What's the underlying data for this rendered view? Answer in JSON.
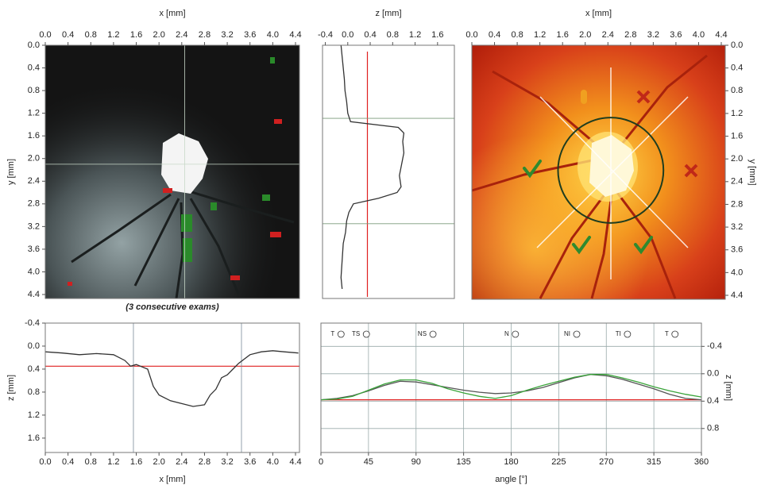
{
  "chart_data": [
    {
      "type": "image",
      "palette": "reflectance",
      "xlabel": "x [mm]",
      "ylabel": "y [mm]",
      "x_axis": "top",
      "y_axis": "left",
      "y_inverted": true,
      "xlim": [
        0,
        4.47
      ],
      "ylim": [
        0,
        4.47
      ],
      "xticks": [
        {
          "value": 0,
          "label": "0.0"
        },
        0.4,
        0.8,
        1.2,
        1.6,
        {
          "value": 2,
          "label": "2.0"
        },
        2.4,
        2.8,
        3.2,
        3.6,
        {
          "value": 4,
          "label": "4.0"
        },
        4.4
      ],
      "yticks": [
        {
          "value": 0,
          "label": "0.0"
        },
        0.4,
        0.8,
        1.2,
        1.6,
        {
          "value": 2,
          "label": "2.0"
        },
        2.4,
        2.8,
        3.2,
        3.6,
        {
          "value": 4,
          "label": "4.0"
        },
        4.4
      ],
      "crosshair": {
        "x": 2.45,
        "y": 2.1
      },
      "caption": "(3 consecutive exams)"
    },
    {
      "type": "line",
      "orientation": "vertical",
      "xlabel": "z [mm]",
      "x_axis": "top",
      "y_inverted": true,
      "xlim": [
        -0.45,
        1.9
      ],
      "ylim": [
        0,
        4.47
      ],
      "xticks": [
        -0.4,
        {
          "value": 0,
          "label": "0.0"
        },
        0.4,
        0.8,
        1.2,
        1.6
      ],
      "y": [
        0.0,
        0.2,
        0.4,
        0.6,
        0.8,
        1.0,
        1.2,
        1.35,
        1.45,
        1.55,
        1.7,
        1.9,
        2.1,
        2.3,
        2.5,
        2.6,
        2.7,
        2.8,
        2.95,
        3.1,
        3.3,
        3.5,
        3.8,
        4.1,
        4.3
      ],
      "values": [
        -0.12,
        -0.1,
        -0.08,
        -0.06,
        -0.05,
        -0.02,
        0.0,
        0.05,
        0.9,
        1.0,
        0.98,
        1.0,
        0.96,
        0.92,
        0.95,
        0.88,
        0.55,
        0.1,
        0.02,
        -0.02,
        -0.04,
        -0.08,
        -0.1,
        -0.12,
        -0.1
      ],
      "color": "#333333",
      "reference": 0.35,
      "reference_color": "#e02020",
      "markers": [
        1.29,
        3.15
      ],
      "marker_color": "#7a9a7a"
    },
    {
      "type": "image",
      "palette": "topography",
      "xlabel": "x [mm]",
      "ylabel": "y [mm]",
      "x_axis": "top",
      "y_axis": "right",
      "y_inverted": true,
      "xlim": [
        0,
        4.47
      ],
      "ylim": [
        0,
        4.47
      ],
      "xticks": [
        {
          "value": 0,
          "label": "0.0"
        },
        0.4,
        0.8,
        1.2,
        1.6,
        {
          "value": 2,
          "label": "2.0"
        },
        2.4,
        2.8,
        3.2,
        3.6,
        {
          "value": 4,
          "label": "4.0"
        },
        4.4
      ],
      "yticks": [
        {
          "value": 0,
          "label": "0.0"
        },
        0.4,
        0.8,
        1.2,
        1.6,
        {
          "value": 2,
          "label": "2.0"
        },
        2.4,
        2.8,
        3.2,
        3.6,
        {
          "value": 4,
          "label": "4.0"
        },
        4.4
      ],
      "contour": {
        "cx": 2.45,
        "cy": 2.2,
        "r": 0.93
      },
      "contour_color": "#1f3d1f"
    },
    {
      "type": "line",
      "orientation": "horizontal",
      "xlabel": "x [mm]",
      "ylabel": "z [mm]",
      "x_axis": "bottom",
      "y_axis": "left",
      "y_inverted": true,
      "xlim": [
        0,
        4.47
      ],
      "ylim": [
        -0.4,
        1.85
      ],
      "xticks": [
        {
          "value": 0,
          "label": "0.0"
        },
        0.4,
        0.8,
        1.2,
        1.6,
        {
          "value": 2,
          "label": "2.0"
        },
        2.4,
        2.8,
        3.2,
        3.6,
        {
          "value": 4,
          "label": "4.0"
        },
        4.4
      ],
      "yticks": [
        -0.4,
        {
          "value": 0,
          "label": "0.0"
        },
        0.4,
        0.8,
        1.2,
        1.6
      ],
      "x": [
        0,
        0.3,
        0.6,
        0.9,
        1.2,
        1.4,
        1.5,
        1.6,
        1.8,
        1.9,
        2.0,
        2.2,
        2.4,
        2.6,
        2.8,
        2.9,
        3.0,
        3.1,
        3.2,
        3.3,
        3.4,
        3.6,
        3.8,
        4.0,
        4.2,
        4.45
      ],
      "values": [
        0.1,
        0.12,
        0.15,
        0.13,
        0.15,
        0.25,
        0.35,
        0.32,
        0.4,
        0.7,
        0.85,
        0.95,
        1.0,
        1.05,
        1.02,
        0.85,
        0.75,
        0.55,
        0.5,
        0.4,
        0.3,
        0.15,
        0.1,
        0.08,
        0.1,
        0.12
      ],
      "color": "#333333",
      "reference": 0.35,
      "reference_color": "#e02020",
      "markers": [
        1.55,
        3.45
      ],
      "marker_color": "#7a8a9a"
    },
    {
      "type": "line",
      "orientation": "horizontal",
      "xlabel": "angle [°]",
      "ylabel": "z [mm]",
      "x_axis": "bottom",
      "y_axis": "right",
      "y_inverted": true,
      "grid": true,
      "xlim": [
        0,
        360
      ],
      "ylim": [
        -0.74,
        1.15
      ],
      "xticks": [
        0,
        45,
        90,
        135,
        180,
        225,
        270,
        315,
        360
      ],
      "yticks": [
        -0.4,
        {
          "value": 0,
          "label": "0.0"
        },
        0.4,
        0.8
      ],
      "x": [
        0,
        15,
        30,
        45,
        60,
        75,
        90,
        105,
        120,
        135,
        150,
        165,
        180,
        195,
        210,
        225,
        240,
        255,
        270,
        285,
        300,
        315,
        330,
        345,
        360
      ],
      "series": [
        {
          "color": "#555555",
          "values": [
            0.38,
            0.36,
            0.32,
            0.25,
            0.17,
            0.11,
            0.12,
            0.16,
            0.2,
            0.24,
            0.27,
            0.29,
            0.28,
            0.25,
            0.2,
            0.13,
            0.06,
            0.01,
            0.03,
            0.08,
            0.15,
            0.22,
            0.3,
            0.36,
            0.38
          ]
        },
        {
          "color": "#3aa43a",
          "values": [
            0.38,
            0.37,
            0.33,
            0.24,
            0.15,
            0.09,
            0.09,
            0.14,
            0.22,
            0.28,
            0.33,
            0.36,
            0.32,
            0.24,
            0.17,
            0.11,
            0.05,
            0.01,
            0.01,
            0.06,
            0.12,
            0.19,
            0.25,
            0.3,
            0.34
          ]
        }
      ],
      "reference": 0.38,
      "reference_color": "#e02020",
      "sector_labels": [
        "T",
        "TS",
        "NS",
        "N",
        "NI",
        "TI",
        "T"
      ]
    }
  ]
}
